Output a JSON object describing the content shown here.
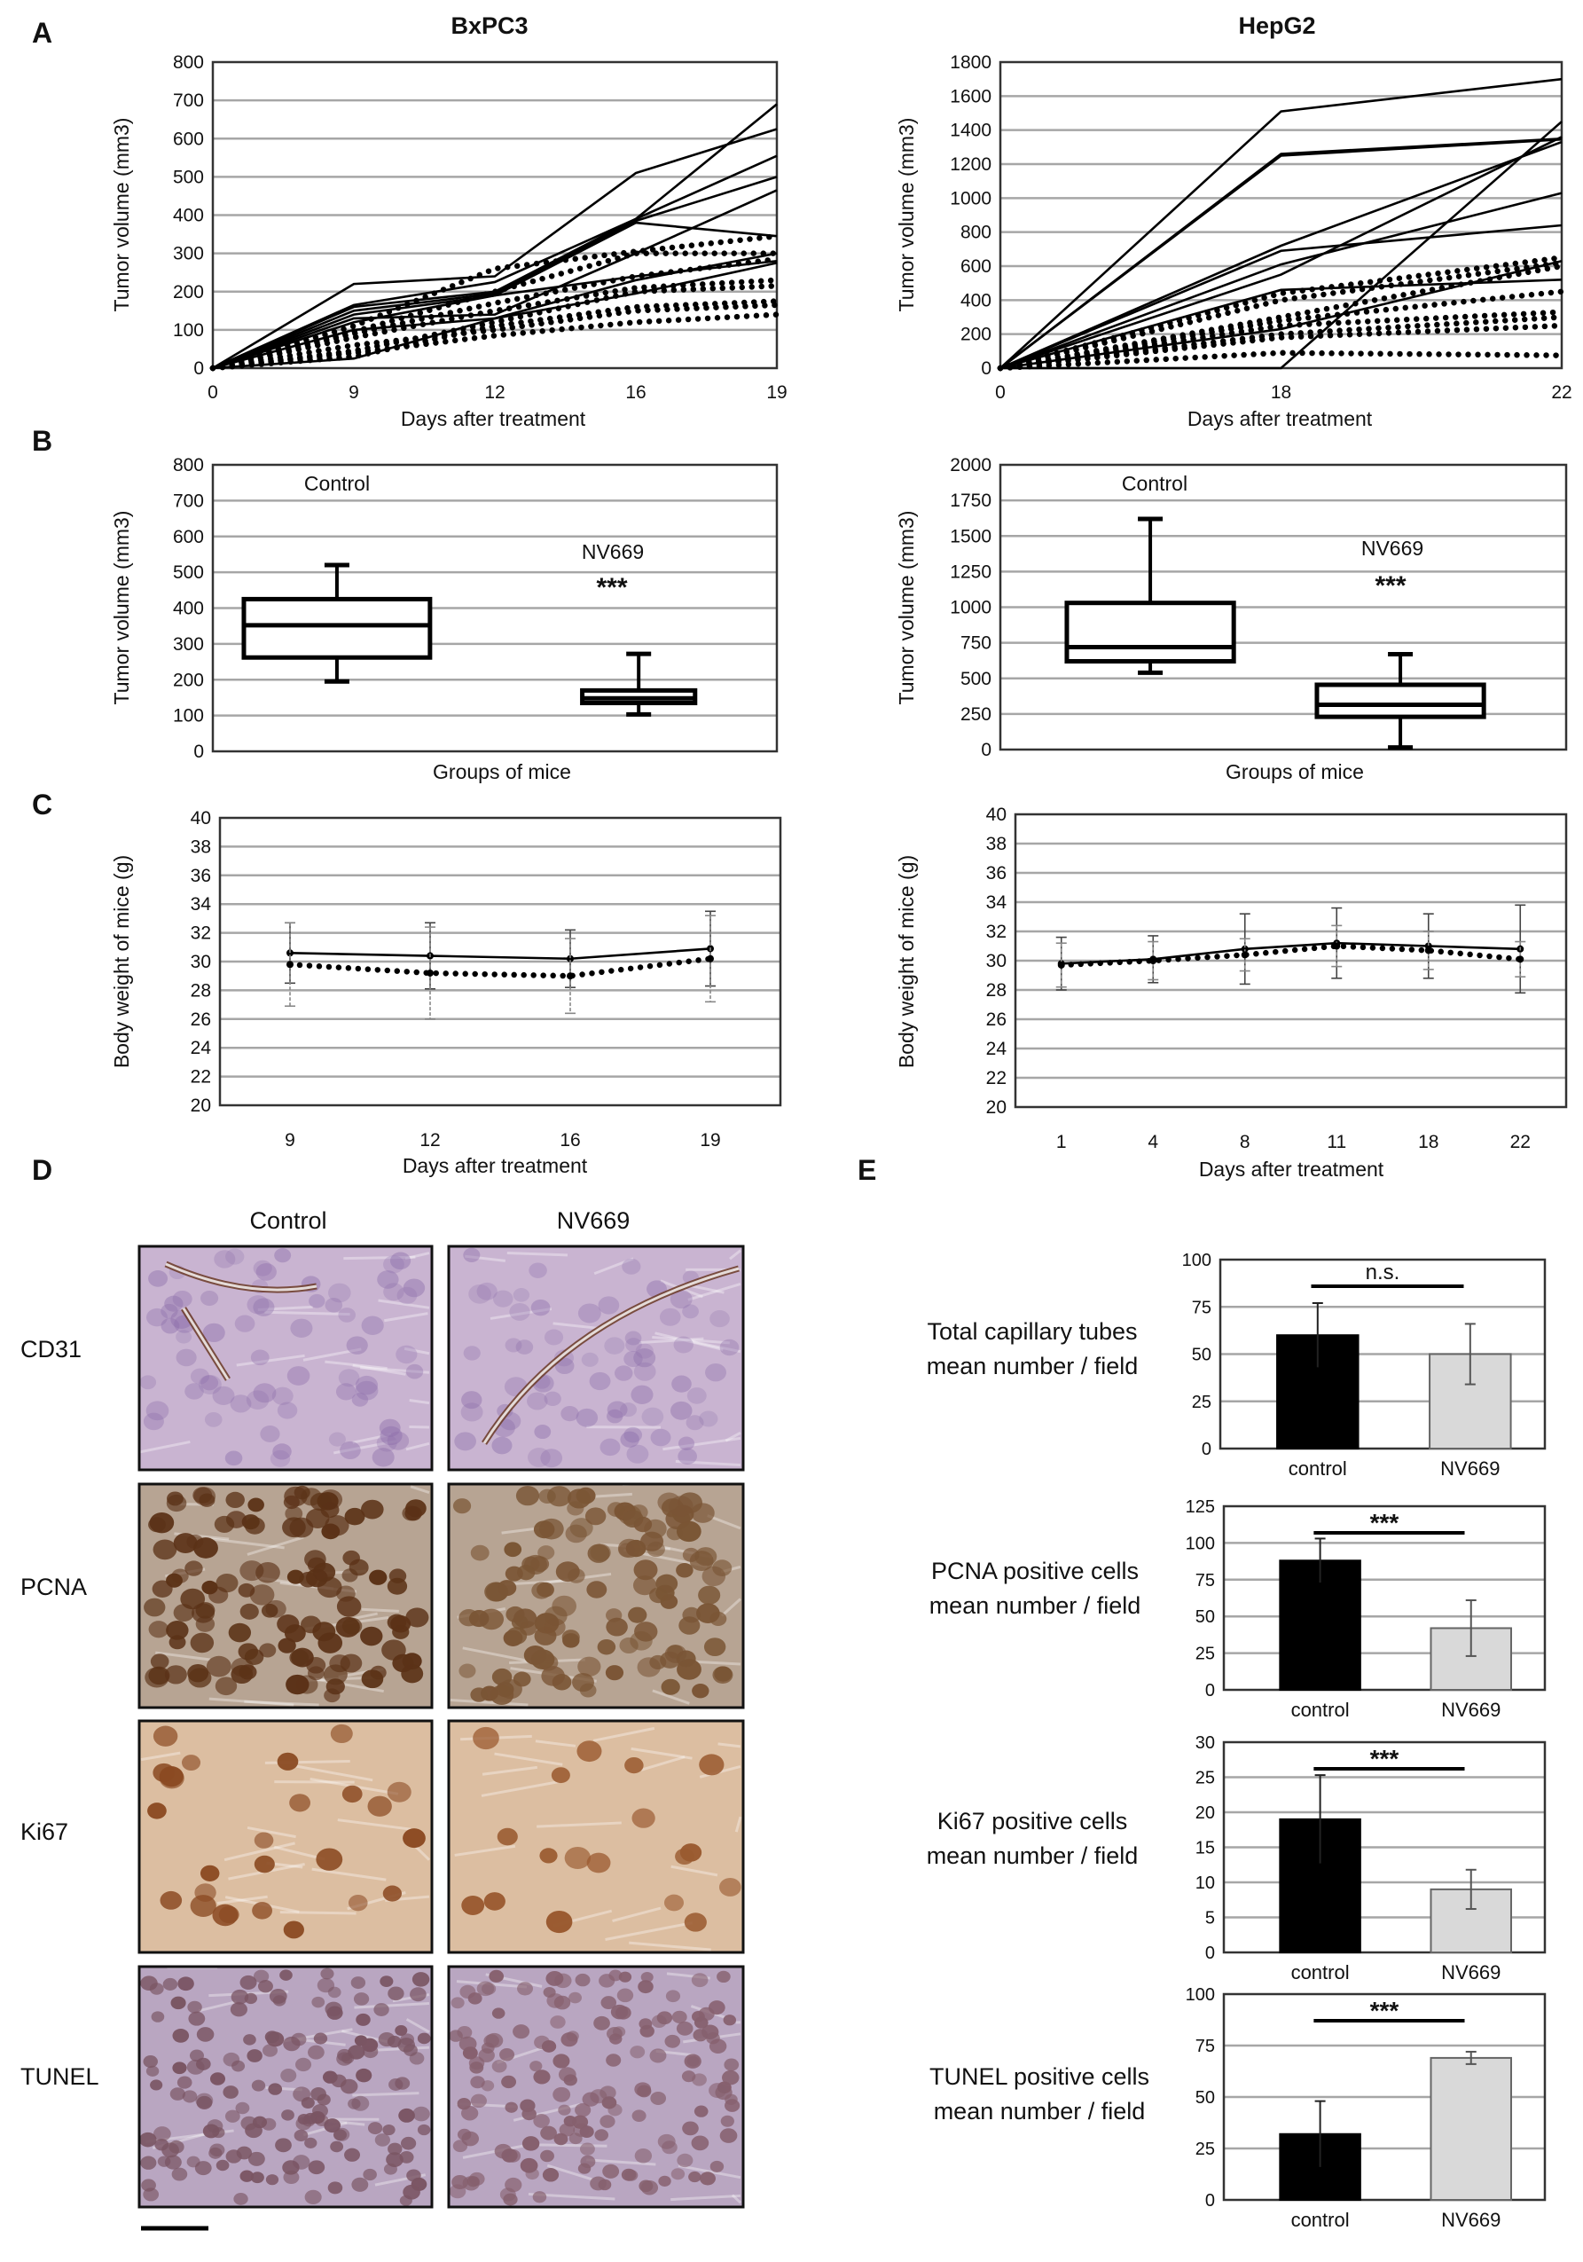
{
  "panel_letters": [
    "A",
    "B",
    "C",
    "D",
    "E"
  ],
  "panel_d": {
    "columns": [
      "Control",
      "NV669"
    ],
    "rows": [
      "CD31",
      "PCNA",
      "Ki67",
      "TUNEL"
    ]
  },
  "chart_data": [
    {
      "panel": "A",
      "type": "line",
      "title": "BxPC3",
      "xlabel": "Days after treatment",
      "ylabel": "Tumor volume (mm3)",
      "categories": [
        "0",
        "9",
        "12",
        "16",
        "19"
      ],
      "ylim": [
        0,
        800
      ],
      "yticks": [
        0,
        100,
        200,
        300,
        400,
        500,
        600,
        700,
        800
      ],
      "grid": true,
      "series": [
        {
          "style": "solid",
          "values": [
            0,
            220,
            240,
            510,
            625
          ]
        },
        {
          "style": "solid",
          "values": [
            0,
            165,
            225,
            390,
            690
          ]
        },
        {
          "style": "solid",
          "values": [
            0,
            160,
            200,
            390,
            555
          ]
        },
        {
          "style": "solid",
          "values": [
            0,
            150,
            195,
            385,
            500
          ]
        },
        {
          "style": "solid",
          "values": [
            0,
            140,
            190,
            380,
            345
          ]
        },
        {
          "style": "solid",
          "values": [
            0,
            130,
            140,
            300,
            465
          ]
        },
        {
          "style": "solid",
          "values": [
            0,
            120,
            190,
            240,
            280
          ]
        },
        {
          "style": "solid",
          "values": [
            0,
            100,
            130,
            195,
            275
          ]
        },
        {
          "style": "solid",
          "values": [
            0,
            25,
            130,
            230,
            300
          ]
        },
        {
          "style": "dotted",
          "values": [
            0,
            110,
            260,
            305,
            345
          ]
        },
        {
          "style": "dotted",
          "values": [
            0,
            95,
            200,
            300,
            300
          ]
        },
        {
          "style": "dotted",
          "values": [
            0,
            90,
            170,
            240,
            285
          ]
        },
        {
          "style": "dotted",
          "values": [
            0,
            80,
            150,
            210,
            230
          ]
        },
        {
          "style": "dotted",
          "values": [
            0,
            45,
            120,
            200,
            215
          ]
        },
        {
          "style": "dotted",
          "values": [
            0,
            60,
            100,
            150,
            165
          ]
        },
        {
          "style": "dotted",
          "values": [
            0,
            40,
            85,
            120,
            140
          ]
        },
        {
          "style": "dotted",
          "values": [
            0,
            30,
            110,
            160,
            175
          ]
        }
      ]
    },
    {
      "panel": "A",
      "type": "line",
      "title": "HepG2",
      "xlabel": "Days after treatment",
      "ylabel": "Tumor volume (mm3)",
      "categories": [
        "0",
        "18",
        "22"
      ],
      "ylim": [
        0,
        1800
      ],
      "yticks": [
        0,
        200,
        400,
        600,
        800,
        1000,
        1200,
        1400,
        1600,
        1800
      ],
      "grid": true,
      "series": [
        {
          "style": "solid",
          "values": [
            0,
            1510,
            1700
          ]
        },
        {
          "style": "solid",
          "values": [
            0,
            1260,
            1350
          ]
        },
        {
          "style": "solid",
          "values": [
            0,
            1250,
            1345
          ]
        },
        {
          "style": "solid",
          "values": [
            0,
            720,
            1330
          ]
        },
        {
          "style": "solid",
          "values": [
            0,
            690,
            840
          ]
        },
        {
          "style": "solid",
          "values": [
            0,
            610,
            1030
          ]
        },
        {
          "style": "solid",
          "values": [
            0,
            550,
            1360
          ]
        },
        {
          "style": "solid",
          "values": [
            0,
            0,
            1450
          ]
        },
        {
          "style": "solid",
          "values": [
            0,
            460,
            520
          ]
        },
        {
          "style": "solid",
          "values": [
            0,
            230,
            630
          ]
        },
        {
          "style": "dotted",
          "values": [
            0,
            440,
            650
          ]
        },
        {
          "style": "dotted",
          "values": [
            0,
            400,
            620
          ]
        },
        {
          "style": "dotted",
          "values": [
            0,
            300,
            600
          ]
        },
        {
          "style": "dotted",
          "values": [
            0,
            280,
            450
          ]
        },
        {
          "style": "dotted",
          "values": [
            0,
            250,
            330
          ]
        },
        {
          "style": "dotted",
          "values": [
            0,
            200,
            300
          ]
        },
        {
          "style": "dotted",
          "values": [
            0,
            180,
            250
          ]
        },
        {
          "style": "dotted",
          "values": [
            0,
            90,
            75
          ]
        }
      ]
    },
    {
      "panel": "B",
      "type": "box",
      "xlabel": "Groups of mice",
      "ylabel": "Tumor volume (mm3)",
      "ylim": [
        0,
        800
      ],
      "yticks": [
        0,
        100,
        200,
        300,
        400,
        500,
        600,
        700,
        800
      ],
      "grid": true,
      "categories": [
        "Control",
        "NV669"
      ],
      "boxes": [
        {
          "min": 195,
          "q1": 262,
          "median": 352,
          "q3": 425,
          "max": 520
        },
        {
          "min": 103,
          "q1": 135,
          "median": 148,
          "q3": 170,
          "max": 272
        }
      ],
      "significance": "***"
    },
    {
      "panel": "B",
      "type": "box",
      "xlabel": "Groups of mice",
      "ylabel": "Tumor volume (mm3)",
      "ylim": [
        0,
        2000
      ],
      "yticks": [
        0,
        250,
        500,
        750,
        1000,
        1250,
        1500,
        1750,
        2000
      ],
      "grid": true,
      "categories": [
        "Control",
        "NV669"
      ],
      "boxes": [
        {
          "min": 540,
          "q1": 620,
          "median": 720,
          "q3": 1030,
          "max": 1620
        },
        {
          "min": 15,
          "q1": 230,
          "median": 315,
          "q3": 455,
          "max": 670
        }
      ],
      "significance": "***"
    },
    {
      "panel": "C",
      "type": "line",
      "xlabel": "Days after treatment",
      "ylabel": "Body weight of mice (g)",
      "categories": [
        "9",
        "12",
        "16",
        "19"
      ],
      "ylim": [
        20,
        40
      ],
      "yticks": [
        20,
        22,
        24,
        26,
        28,
        30,
        32,
        34,
        36,
        38,
        40
      ],
      "grid": true,
      "series": [
        {
          "style": "solid",
          "values": [
            30.6,
            30.4,
            30.2,
            30.9
          ],
          "sd": [
            2.1,
            2.3,
            2.0,
            2.6
          ]
        },
        {
          "style": "dotted",
          "values": [
            29.8,
            29.2,
            29.0,
            30.2
          ],
          "sd": [
            2.9,
            3.2,
            2.6,
            3.0
          ]
        }
      ]
    },
    {
      "panel": "C",
      "type": "line",
      "xlabel": "Days after treatment",
      "ylabel": "Body weight of mice (g)",
      "categories": [
        "1",
        "4",
        "8",
        "11",
        "18",
        "22"
      ],
      "ylim": [
        20,
        40
      ],
      "yticks": [
        20,
        22,
        24,
        26,
        28,
        30,
        32,
        34,
        36,
        38,
        40
      ],
      "grid": true,
      "series": [
        {
          "style": "solid",
          "values": [
            29.8,
            30.1,
            30.8,
            31.2,
            31.0,
            30.8
          ],
          "sd": [
            1.8,
            1.6,
            2.4,
            2.4,
            2.2,
            3.0
          ]
        },
        {
          "style": "dotted",
          "values": [
            29.7,
            30.0,
            30.4,
            31.0,
            30.7,
            30.1
          ],
          "sd": [
            1.5,
            1.3,
            1.1,
            1.4,
            1.3,
            1.2
          ]
        }
      ]
    },
    {
      "panel": "E",
      "type": "bar",
      "label_lines": [
        "Total capillary tubes",
        "mean number  / field"
      ],
      "categories": [
        "control",
        "NV669"
      ],
      "values": [
        60,
        50
      ],
      "errors": [
        17,
        16
      ],
      "ylim": [
        0,
        100
      ],
      "yticks": [
        0,
        25,
        50,
        75,
        100
      ],
      "grid": true,
      "significance": "n.s.",
      "colors": [
        "#000000",
        "#d9d9d9"
      ]
    },
    {
      "panel": "E",
      "type": "bar",
      "label_lines": [
        "PCNA positive cells",
        "mean number  / field"
      ],
      "categories": [
        "control",
        "NV669"
      ],
      "values": [
        88,
        42
      ],
      "errors": [
        15,
        19
      ],
      "ylim": [
        0,
        125
      ],
      "yticks": [
        0,
        25,
        50,
        75,
        100,
        125
      ],
      "grid": true,
      "significance": "***",
      "colors": [
        "#000000",
        "#d9d9d9"
      ]
    },
    {
      "panel": "E",
      "type": "bar",
      "label_lines": [
        "Ki67 positive cells",
        "mean number  / field"
      ],
      "categories": [
        "control",
        "NV669"
      ],
      "values": [
        19,
        9
      ],
      "errors": [
        6.3,
        2.8
      ],
      "ylim": [
        0,
        30
      ],
      "yticks": [
        0,
        5,
        10,
        15,
        20,
        25,
        30
      ],
      "grid": true,
      "significance": "***",
      "colors": [
        "#000000",
        "#d9d9d9"
      ]
    },
    {
      "panel": "E",
      "type": "bar",
      "label_lines": [
        "TUNEL positive cells",
        "mean number  / field"
      ],
      "categories": [
        "control",
        "NV669"
      ],
      "values": [
        32,
        69
      ],
      "errors": [
        16,
        3
      ],
      "ylim": [
        0,
        100
      ],
      "yticks": [
        0,
        25,
        50,
        75,
        100
      ],
      "grid": true,
      "significance": "***",
      "colors": [
        "#000000",
        "#d9d9d9"
      ]
    }
  ]
}
